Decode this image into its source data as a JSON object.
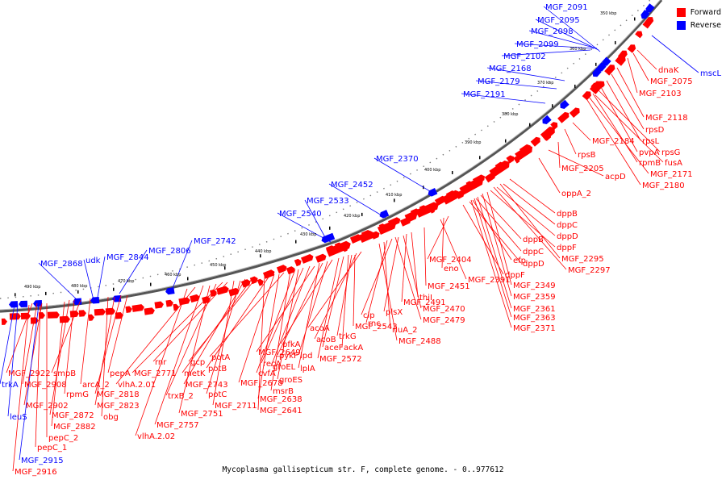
{
  "caption": "Mycoplasma gallisepticum str. F, complete genome. - 0..977612",
  "legend": [
    {
      "label": "Forward",
      "color": "#ff0000"
    },
    {
      "label": "Reverse",
      "color": "#0000ff"
    }
  ],
  "colors": {
    "forward": "#ff0000",
    "reverse": "#0000ff",
    "backbone": "#777777"
  },
  "scale_labels": [
    "350 kbp",
    "360 kbp",
    "370 kbp",
    "380 kbp",
    "390 kbp",
    "400 kbp",
    "410 kbp",
    "420 kbp",
    "430 kbp",
    "440 kbp",
    "450 kbp",
    "460 kbp",
    "470 kbp",
    "480 kbp",
    "490 kbp"
  ],
  "forward_labels": [
    "dnaK",
    "MGF_2075",
    "MGF_2103",
    "MGF_2118",
    "rpsD",
    "rpsL",
    "pvpA",
    "rpsG",
    "MGF_2184",
    "rpsB",
    "rpmB",
    "fusA",
    "MGF_2171",
    "MGF_2205",
    "acpD",
    "MGF_2180",
    "oppA_2",
    "dppB",
    "dppC",
    "dppD",
    "dppF",
    "dppB",
    "dppC",
    "dppD",
    "dppF",
    "MGF_2295",
    "MGF_2297",
    "efp",
    "MGF_2404",
    "eno",
    "MGF_2391",
    "MGF_2349",
    "MGF_2359",
    "MGF_2361",
    "MGF_2363",
    "MGF_2371",
    "MGF_2451",
    "thiI",
    "MGF_2491",
    "MGF_2470",
    "plsX",
    "MGF_2479",
    "clp",
    "rnc",
    "rluA_2",
    "MGF_2488",
    "acoA",
    "acoB",
    "trkG",
    "ackA",
    "aceF",
    "MGF_2543",
    "MGF_2572",
    "pfkA",
    "lpd",
    "pykF",
    "lplA",
    "MGF_2649",
    "groEL",
    "recA",
    "groES",
    "cvfA",
    "msrB",
    "potA",
    "MGF_2638",
    "MGF_2678",
    "potB",
    "MGF_2641",
    "gcp",
    "metK",
    "MGF_2743",
    "potC",
    "MGF_2711",
    "rnr",
    "MGF_2771",
    "trxB_2",
    "MGF_2751",
    "MGF_2757",
    "vlhA.2.01",
    "vlhA.2.02",
    "pepA",
    "MGF_2818",
    "MGF_2823",
    "obg",
    "arcA_2",
    "smpB",
    "rpmG",
    "MGF_2872",
    "MGF_2882",
    "MGF_2922",
    "MGF_2908",
    "MGF_2902",
    "pepC_2",
    "pepC_1",
    "MGF_2916"
  ],
  "reverse_labels": [
    "MGF_2091",
    "MGF_2095",
    "MGF_2098",
    "MGF_2099",
    "MGF_2102",
    "MGF_2168",
    "MGF_2179",
    "MGF_2191",
    "mscL",
    "MGF_2370",
    "MGF_2452",
    "MGF_2533",
    "MGF_2540",
    "MGF_2742",
    "MGF_2806",
    "MGF_2844",
    "udk",
    "MGF_2868",
    "trkA",
    "leuS",
    "MGF_2915"
  ]
}
